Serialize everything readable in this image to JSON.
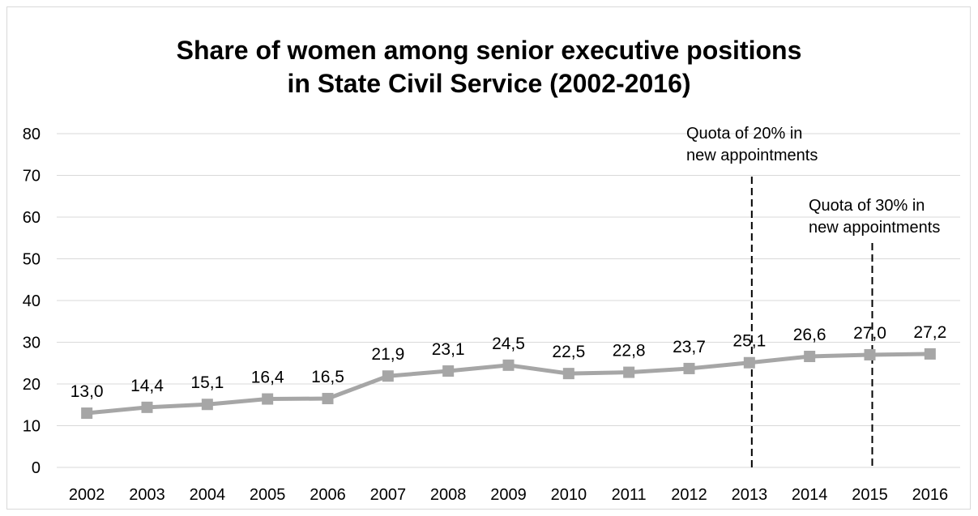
{
  "chart_data": {
    "type": "line",
    "title_lines": [
      "Share of women among senior executive positions",
      "in State Civil Service (2002-2016)"
    ],
    "xlabel": "",
    "ylabel": "",
    "categories": [
      "2002",
      "2003",
      "2004",
      "2005",
      "2006",
      "2007",
      "2008",
      "2009",
      "2010",
      "2011",
      "2012",
      "2013",
      "2014",
      "2015",
      "2016"
    ],
    "series": [
      {
        "values": [
          13.0,
          14.4,
          15.1,
          16.4,
          16.5,
          21.9,
          23.1,
          24.5,
          22.5,
          22.8,
          23.7,
          25.1,
          26.6,
          27.0,
          27.2
        ],
        "data_labels": [
          "13,0",
          "14,4",
          "15,1",
          "16,4",
          "16,5",
          "21,9",
          "23,1",
          "24,5",
          "22,5",
          "22,8",
          "23,7",
          "25,1",
          "26,6",
          "27,0",
          "27,2"
        ],
        "color": "#a6a6a6",
        "marker": "square"
      }
    ],
    "ylim": [
      0,
      80
    ],
    "yticks": [
      0,
      10,
      20,
      30,
      40,
      50,
      60,
      70,
      80
    ],
    "grid": true,
    "legend": "none",
    "annotations": [
      {
        "category": "2013",
        "lines": [
          "Quota of 20% in",
          "new appointments"
        ],
        "style": "dashed-vertical-line"
      },
      {
        "category": "2015",
        "lines": [
          "Quota of 30% in",
          "new appointments"
        ],
        "style": "dashed-vertical-line"
      }
    ]
  }
}
